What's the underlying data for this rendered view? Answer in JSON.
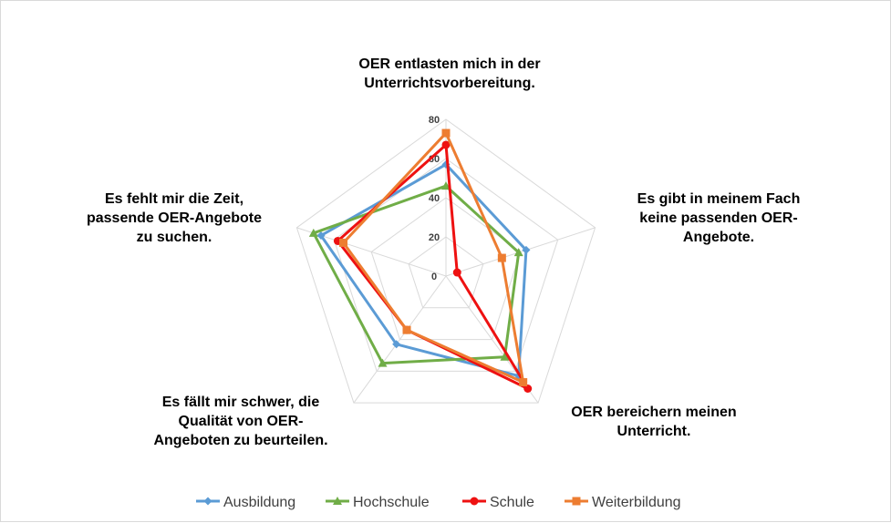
{
  "chart_data": {
    "type": "radar",
    "categories": [
      [
        "OER entlasten mich in der",
        "Unterrichtsvorbereitung."
      ],
      [
        "Es gibt in meinem Fach",
        "keine passenden OER-",
        "Angebote."
      ],
      [
        "OER bereichern meinen",
        "Unterricht."
      ],
      [
        "Es fällt mir schwer, die",
        "Qualität von OER-",
        "Angeboten zu beurteilen."
      ],
      [
        "Es fehlt mir die Zeit,",
        "passende OER-Angebote",
        "zu suchen."
      ]
    ],
    "ticks": [
      "0",
      "20",
      "40",
      "60",
      "80"
    ],
    "rlim": [
      0,
      80
    ],
    "grid": true,
    "legend_position": "bottom",
    "series": [
      {
        "name": "Ausbildung",
        "color": "#5b9bd5",
        "marker": "diamond",
        "values": [
          57,
          43,
          63,
          43,
          67
        ]
      },
      {
        "name": "Hochschule",
        "color": "#70ad47",
        "marker": "triangle",
        "values": [
          46,
          39,
          51,
          55,
          71
        ]
      },
      {
        "name": "Schule",
        "color": "#ee1111",
        "marker": "circle",
        "values": [
          67,
          6,
          71,
          34,
          58
        ]
      },
      {
        "name": "Weiterbildung",
        "color": "#ed7d31",
        "marker": "square",
        "values": [
          73,
          30,
          67,
          34,
          55
        ]
      }
    ]
  }
}
